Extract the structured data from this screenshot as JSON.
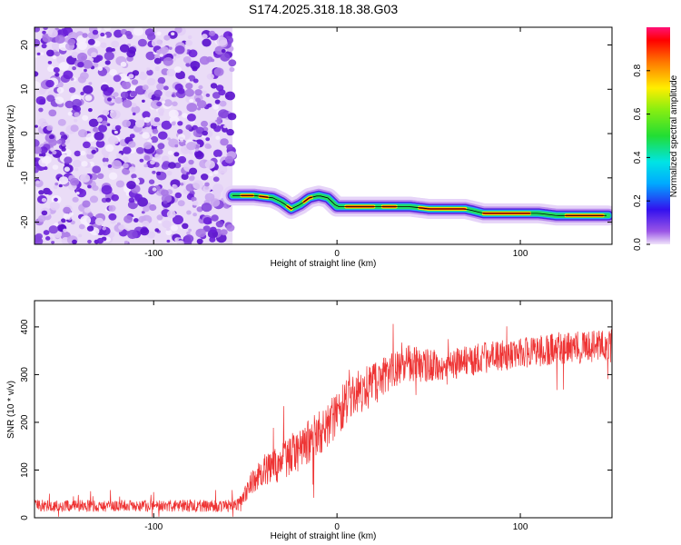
{
  "title": "S174.2025.318.18.38.G03",
  "chart_data": [
    {
      "type": "heatmap",
      "xlabel": "Height of straight line (km)",
      "ylabel": "Frequency (Hz)",
      "xlim": [
        -165,
        150
      ],
      "ylim": [
        -25,
        24
      ],
      "xticks": [
        -100,
        0,
        100
      ],
      "yticks": [
        -20,
        -10,
        0,
        10,
        20
      ],
      "noise_region": {
        "x_from": -165,
        "x_to": -57
      },
      "ridge_x": [
        -57,
        -45,
        -35,
        -30,
        -25,
        -20,
        -15,
        -10,
        -5,
        0,
        10,
        20,
        30,
        40,
        50,
        60,
        70,
        80,
        90,
        100,
        110,
        120,
        130,
        140,
        148
      ],
      "ridge_freq": [
        -14,
        -14,
        -14.5,
        -15.5,
        -17,
        -16,
        -14.5,
        -14,
        -14.5,
        -16.5,
        -16.5,
        -16.5,
        -16.5,
        -16.5,
        -17,
        -17,
        -17,
        -18,
        -18,
        -18,
        -18,
        -18.5,
        -18.5,
        -18.5,
        -18.5
      ],
      "colorbar": {
        "label": "Normalized spectral amplitude",
        "min": 0.0,
        "max": 1.0,
        "ticks": [
          0.0,
          0.2,
          0.4,
          0.6,
          0.8
        ],
        "tick_labels": [
          "0.0",
          "0.2",
          "0.4",
          "0.6",
          "0.8"
        ]
      }
    },
    {
      "type": "line",
      "xlabel": "Height of straight line (km)",
      "ylabel": "SNR (10 * v/v)",
      "xlim": [
        -165,
        150
      ],
      "ylim": [
        0,
        455
      ],
      "xticks": [
        -100,
        0,
        100
      ],
      "yticks": [
        0,
        100,
        200,
        300,
        400
      ],
      "line_color": "#ee3333",
      "trend_x": [
        -165,
        -60,
        -52,
        -48,
        -40,
        -30,
        -20,
        -10,
        0,
        10,
        20,
        30,
        40,
        50,
        60,
        80,
        100,
        120,
        150
      ],
      "trend_y": [
        25,
        25,
        30,
        70,
        100,
        115,
        145,
        175,
        220,
        260,
        280,
        305,
        325,
        318,
        320,
        335,
        345,
        355,
        360
      ],
      "noise_amp_x": [
        -165,
        -55,
        -45,
        -20,
        0,
        30,
        60,
        150
      ],
      "noise_amp_y": [
        18,
        18,
        40,
        70,
        70,
        60,
        45,
        50
      ]
    }
  ]
}
